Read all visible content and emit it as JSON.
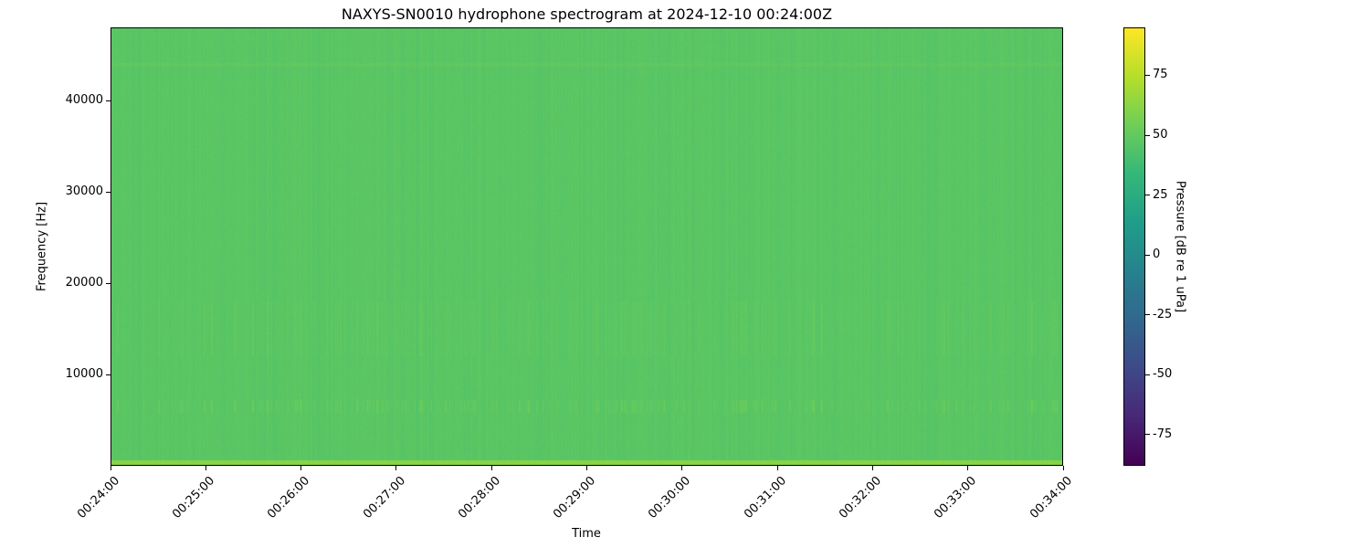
{
  "chart_data": {
    "type": "heatmap",
    "title": "NAXYS-SN0010 hydrophone spectrogram at 2024-12-10 00:24:00Z",
    "xlabel": "Time",
    "ylabel": "Frequency [Hz]",
    "xlim": [
      "00:24:00",
      "00:34:00"
    ],
    "ylim": [
      0,
      48000
    ],
    "x_ticks": [
      "00:24:00",
      "00:25:00",
      "00:26:00",
      "00:27:00",
      "00:28:00",
      "00:29:00",
      "00:30:00",
      "00:31:00",
      "00:32:00",
      "00:33:00",
      "00:34:00"
    ],
    "y_ticks": [
      10000,
      20000,
      30000,
      40000
    ],
    "colormap": "viridis",
    "colorbar": {
      "label": "Pressure [dB re 1 uPa]",
      "range": [
        -88,
        95
      ],
      "ticks": [
        -75,
        -50,
        -25,
        0,
        25,
        50,
        75
      ]
    },
    "typical_level_db": 47,
    "features": {
      "low_frequency_band_hz": [
        0,
        600
      ],
      "low_frequency_band_db": 62,
      "intermittent_band_hz": [
        5800,
        7200
      ],
      "intermittent_band_db": 58,
      "broadband_clicks_hz": [
        12000,
        18000
      ],
      "tonal_line_hz": 44000
    },
    "grid": false
  }
}
